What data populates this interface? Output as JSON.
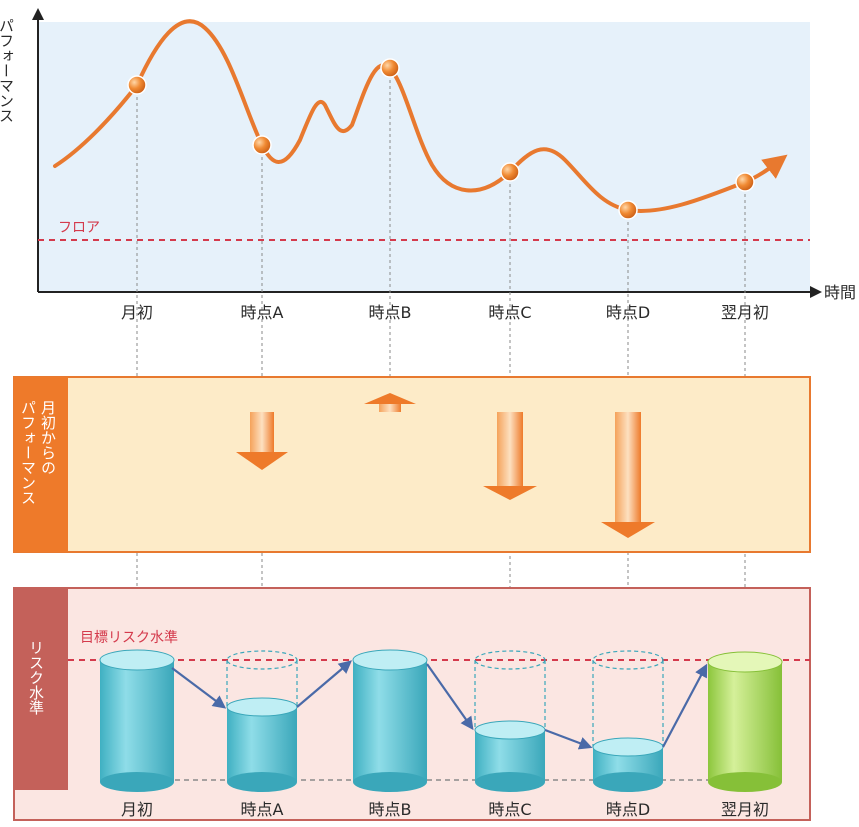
{
  "top_chart": {
    "y_axis_label": "パフォーマンス",
    "x_axis_label": "時間",
    "floor_label": "フロア",
    "ticks": [
      "月初",
      "時点A",
      "時点B",
      "時点C",
      "時点D",
      "翌月初"
    ]
  },
  "performance_panel": {
    "label_line1": "月初からの",
    "label_line2": "パフォーマンス"
  },
  "risk_panel": {
    "label": "リスク水準",
    "target_label": "目標リスク水準",
    "ticks": [
      "月初",
      "時点A",
      "時点B",
      "時点C",
      "時点D",
      "翌月初"
    ]
  },
  "colors": {
    "curve": "#e8792f",
    "floor_line": "#d43a4c",
    "chart_bg": "#e6f1fa",
    "perf_bg": "#fdebc8",
    "perf_border": "#e8792f",
    "risk_bg": "#fbe6e2",
    "risk_border": "#c4615a",
    "cylinder": "#5ec4d4",
    "cylinder_last": "#a8d860",
    "link_arrow": "#4a6aa8"
  }
}
